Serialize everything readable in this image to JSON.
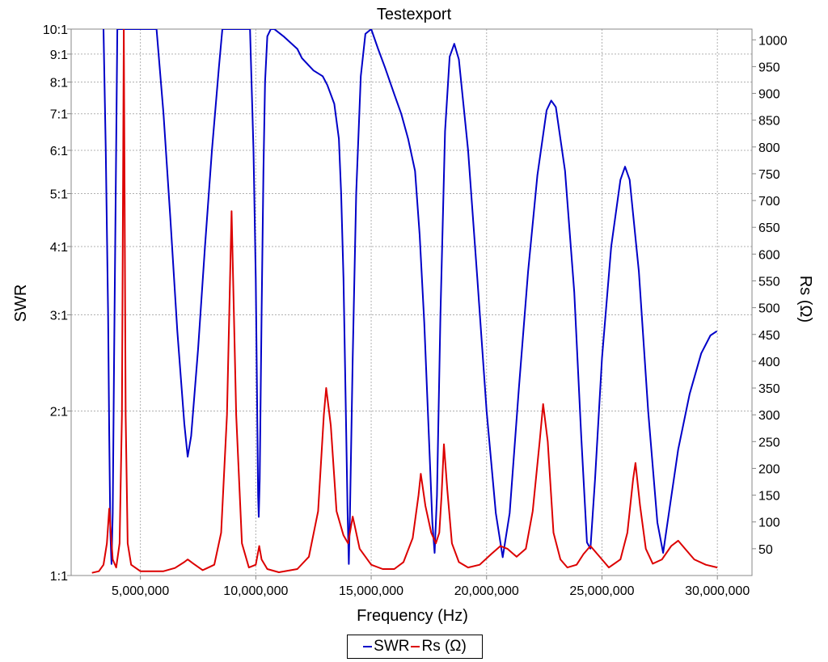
{
  "chart_data": {
    "type": "line",
    "title": "Testexport",
    "xlabel": "Frequency (Hz)",
    "ylabel_left": "SWR",
    "ylabel_right": "Rs (Ω)",
    "x_ticks": [
      5000000,
      10000000,
      15000000,
      20000000,
      25000000,
      30000000
    ],
    "x_tick_labels": [
      "5,000,000",
      "10,000,000",
      "15,000,000",
      "20,000,000",
      "25,000,000",
      "30,000,000"
    ],
    "xlim": [
      2000000,
      31500000
    ],
    "left_axis": {
      "scale": "log",
      "ylim": [
        1,
        10
      ],
      "ticks": [
        1,
        2,
        3,
        4,
        5,
        6,
        7,
        8,
        9,
        10
      ],
      "tick_labels": [
        "1:1",
        "2:1",
        "3:1",
        "4:1",
        "5:1",
        "6:1",
        "7:1",
        "8:1",
        "9:1",
        "10:1"
      ]
    },
    "right_axis": {
      "scale": "linear",
      "ylim": [
        0,
        1020
      ],
      "ticks": [
        50,
        100,
        150,
        200,
        250,
        300,
        350,
        400,
        450,
        500,
        550,
        600,
        650,
        700,
        750,
        800,
        850,
        900,
        950,
        1000
      ],
      "tick_labels": [
        "50",
        "100",
        "150",
        "200",
        "250",
        "300",
        "350",
        "400",
        "450",
        "500",
        "550",
        "600",
        "650",
        "700",
        "750",
        "800",
        "850",
        "900",
        "950",
        "1000"
      ]
    },
    "grid": true,
    "legend_placement": "bottom-center",
    "series": [
      {
        "name": "SWR",
        "axis": "left",
        "color": "#0000c8",
        "points": [
          [
            3400000,
            10
          ],
          [
            3500000,
            6
          ],
          [
            3600000,
            3
          ],
          [
            3650000,
            1.8
          ],
          [
            3700000,
            1.2
          ],
          [
            3750000,
            1.05
          ],
          [
            3800000,
            1.3
          ],
          [
            3860000,
            2.5
          ],
          [
            3930000,
            5
          ],
          [
            4000000,
            10
          ],
          [
            5700000,
            10
          ],
          [
            6000000,
            7
          ],
          [
            6300000,
            4.5
          ],
          [
            6600000,
            2.8
          ],
          [
            6900000,
            1.9
          ],
          [
            7050000,
            1.65
          ],
          [
            7200000,
            1.8
          ],
          [
            7500000,
            2.6
          ],
          [
            7800000,
            4
          ],
          [
            8100000,
            6
          ],
          [
            8400000,
            8.5
          ],
          [
            8550000,
            10
          ],
          [
            9750000,
            10
          ],
          [
            9900000,
            6
          ],
          [
            10000000,
            3.5
          ],
          [
            10050000,
            2.2
          ],
          [
            10100000,
            1.4
          ],
          [
            10130000,
            1.28
          ],
          [
            10170000,
            1.5
          ],
          [
            10250000,
            3
          ],
          [
            10330000,
            5.5
          ],
          [
            10400000,
            8
          ],
          [
            10500000,
            9.7
          ],
          [
            10650000,
            10
          ],
          [
            10800000,
            10
          ],
          [
            11200000,
            9.7
          ],
          [
            11800000,
            9.2
          ],
          [
            12000000,
            8.85
          ],
          [
            12500000,
            8.4
          ],
          [
            12900000,
            8.2
          ],
          [
            13100000,
            7.9
          ],
          [
            13400000,
            7.3
          ],
          [
            13600000,
            6.3
          ],
          [
            13700000,
            5
          ],
          [
            13800000,
            3.5
          ],
          [
            13900000,
            2
          ],
          [
            13980000,
            1.3
          ],
          [
            14030000,
            1.05
          ],
          [
            14080000,
            1.3
          ],
          [
            14200000,
            2.5
          ],
          [
            14350000,
            5
          ],
          [
            14550000,
            8.2
          ],
          [
            14750000,
            9.8
          ],
          [
            15000000,
            10
          ],
          [
            15300000,
            9.2
          ],
          [
            15600000,
            8.5
          ],
          [
            16000000,
            7.6
          ],
          [
            16300000,
            7
          ],
          [
            16600000,
            6.3
          ],
          [
            16900000,
            5.5
          ],
          [
            17100000,
            4.2
          ],
          [
            17300000,
            2.9
          ],
          [
            17500000,
            1.8
          ],
          [
            17650000,
            1.25
          ],
          [
            17750000,
            1.1
          ],
          [
            17850000,
            1.4
          ],
          [
            18000000,
            3
          ],
          [
            18200000,
            6.5
          ],
          [
            18400000,
            8.9
          ],
          [
            18600000,
            9.4
          ],
          [
            18800000,
            8.8
          ],
          [
            19200000,
            6
          ],
          [
            19600000,
            3.5
          ],
          [
            20000000,
            2
          ],
          [
            20400000,
            1.3
          ],
          [
            20700000,
            1.08
          ],
          [
            21000000,
            1.3
          ],
          [
            21400000,
            2.2
          ],
          [
            21800000,
            3.6
          ],
          [
            22200000,
            5.4
          ],
          [
            22600000,
            7.1
          ],
          [
            22800000,
            7.4
          ],
          [
            23000000,
            7.2
          ],
          [
            23400000,
            5.5
          ],
          [
            23800000,
            3.3
          ],
          [
            24100000,
            1.8
          ],
          [
            24350000,
            1.15
          ],
          [
            24500000,
            1.12
          ],
          [
            24700000,
            1.5
          ],
          [
            25000000,
            2.5
          ],
          [
            25400000,
            4
          ],
          [
            25800000,
            5.3
          ],
          [
            26000000,
            5.6
          ],
          [
            26200000,
            5.3
          ],
          [
            26600000,
            3.6
          ],
          [
            27000000,
            2
          ],
          [
            27400000,
            1.25
          ],
          [
            27650000,
            1.1
          ],
          [
            27900000,
            1.3
          ],
          [
            28300000,
            1.7
          ],
          [
            28800000,
            2.15
          ],
          [
            29300000,
            2.55
          ],
          [
            29700000,
            2.75
          ],
          [
            29980000,
            2.8
          ]
        ]
      },
      {
        "name": "Rs (Ω)",
        "axis": "right",
        "color": "#dc0000",
        "points": [
          [
            2900000,
            5
          ],
          [
            3200000,
            8
          ],
          [
            3400000,
            20
          ],
          [
            3550000,
            60
          ],
          [
            3650000,
            125
          ],
          [
            3720000,
            80
          ],
          [
            3800000,
            30
          ],
          [
            3950000,
            15
          ],
          [
            4100000,
            60
          ],
          [
            4200000,
            300
          ],
          [
            4280000,
            1020
          ],
          [
            4360000,
            300
          ],
          [
            4450000,
            60
          ],
          [
            4600000,
            20
          ],
          [
            5000000,
            8
          ],
          [
            6000000,
            8
          ],
          [
            6500000,
            14
          ],
          [
            6900000,
            25
          ],
          [
            7050000,
            30
          ],
          [
            7300000,
            22
          ],
          [
            7700000,
            10
          ],
          [
            8200000,
            20
          ],
          [
            8500000,
            80
          ],
          [
            8750000,
            300
          ],
          [
            8950000,
            680
          ],
          [
            9150000,
            300
          ],
          [
            9400000,
            60
          ],
          [
            9700000,
            15
          ],
          [
            10000000,
            20
          ],
          [
            10150000,
            55
          ],
          [
            10250000,
            30
          ],
          [
            10500000,
            12
          ],
          [
            11000000,
            6
          ],
          [
            11800000,
            12
          ],
          [
            12300000,
            35
          ],
          [
            12700000,
            120
          ],
          [
            12950000,
            300
          ],
          [
            13050000,
            350
          ],
          [
            13250000,
            280
          ],
          [
            13500000,
            120
          ],
          [
            13800000,
            75
          ],
          [
            14000000,
            60
          ],
          [
            14200000,
            110
          ],
          [
            14300000,
            90
          ],
          [
            14500000,
            50
          ],
          [
            15000000,
            20
          ],
          [
            15500000,
            12
          ],
          [
            16000000,
            12
          ],
          [
            16400000,
            25
          ],
          [
            16800000,
            70
          ],
          [
            17050000,
            150
          ],
          [
            17150000,
            190
          ],
          [
            17350000,
            130
          ],
          [
            17600000,
            80
          ],
          [
            17800000,
            60
          ],
          [
            17950000,
            80
          ],
          [
            18050000,
            150
          ],
          [
            18150000,
            245
          ],
          [
            18300000,
            160
          ],
          [
            18500000,
            60
          ],
          [
            18800000,
            25
          ],
          [
            19200000,
            15
          ],
          [
            19700000,
            20
          ],
          [
            20200000,
            40
          ],
          [
            20600000,
            55
          ],
          [
            20900000,
            50
          ],
          [
            21300000,
            35
          ],
          [
            21700000,
            50
          ],
          [
            22000000,
            120
          ],
          [
            22300000,
            250
          ],
          [
            22450000,
            320
          ],
          [
            22650000,
            250
          ],
          [
            22900000,
            80
          ],
          [
            23200000,
            30
          ],
          [
            23500000,
            15
          ],
          [
            23900000,
            20
          ],
          [
            24200000,
            40
          ],
          [
            24500000,
            55
          ],
          [
            24800000,
            40
          ],
          [
            25300000,
            15
          ],
          [
            25800000,
            30
          ],
          [
            26100000,
            80
          ],
          [
            26350000,
            180
          ],
          [
            26450000,
            210
          ],
          [
            26650000,
            130
          ],
          [
            26900000,
            50
          ],
          [
            27200000,
            22
          ],
          [
            27600000,
            30
          ],
          [
            28000000,
            55
          ],
          [
            28300000,
            65
          ],
          [
            28600000,
            50
          ],
          [
            29000000,
            30
          ],
          [
            29500000,
            20
          ],
          [
            30000000,
            15
          ]
        ]
      }
    ]
  },
  "legend": {
    "items": [
      {
        "label": "SWR",
        "color": "#0000c8"
      },
      {
        "label": "Rs (Ω)",
        "color": "#dc0000"
      }
    ]
  }
}
